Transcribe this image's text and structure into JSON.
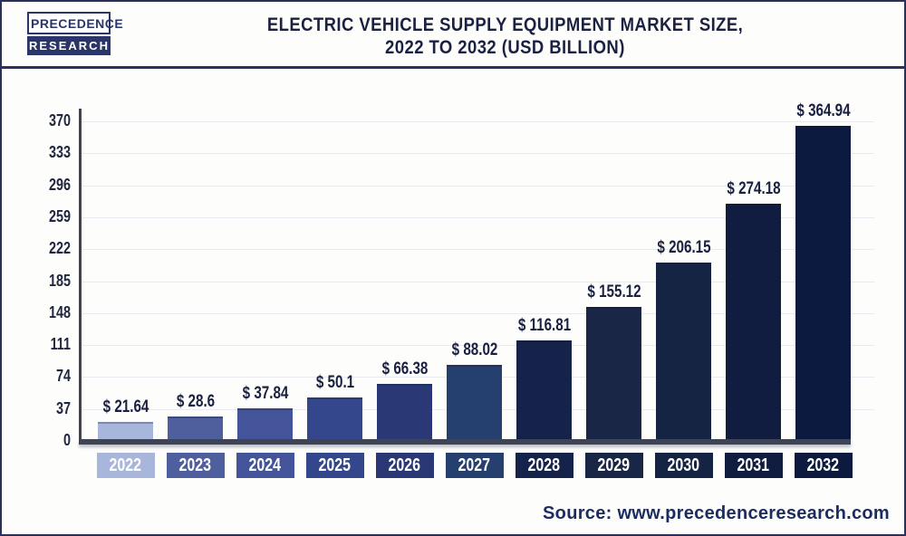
{
  "header": {
    "logo": {
      "line1": "PRECEDENCE",
      "line2": "RESEARCH"
    },
    "title_line1": "ELECTRIC VEHICLE SUPPLY EQUIPMENT MARKET SIZE,",
    "title_line2": "2022 TO 2032 (USD BILLION)"
  },
  "chart_data": {
    "type": "bar",
    "title": "Electric Vehicle Supply Equipment Market Size, 2022 to 2032 (USD Billion)",
    "categories": [
      "2022",
      "2023",
      "2024",
      "2025",
      "2026",
      "2027",
      "2028",
      "2029",
      "2030",
      "2031",
      "2032"
    ],
    "values": [
      21.64,
      28.6,
      37.84,
      50.1,
      66.38,
      88.02,
      116.81,
      155.12,
      206.15,
      274.18,
      364.94
    ],
    "value_labels": [
      "$ 21.64",
      "$ 28.6",
      "$ 37.84",
      "$ 50.1",
      "$ 66.38",
      "$ 88.02",
      "$ 116.81",
      "$ 155.12",
      "$ 206.15",
      "$ 274.18",
      "$ 364.94"
    ],
    "unit": "USD Billion",
    "xlabel": "",
    "ylabel": "",
    "ylim": [
      0,
      370
    ],
    "yticks": [
      0,
      37,
      74,
      111,
      148,
      185,
      222,
      259,
      296,
      333,
      370
    ],
    "grid": true,
    "legend": false,
    "bar_colors": [
      "#a9b6db",
      "#4f5f9e",
      "#44549a",
      "#35478c",
      "#2a3876",
      "#25406f",
      "#15224a",
      "#192645",
      "#162443",
      "#111d40",
      "#0d1a3f"
    ],
    "category_label_text_color": "#ffffff"
  },
  "footer": {
    "source": "Source: www.precedenceresearch.com"
  },
  "colors": {
    "frame_border": "#2a3158",
    "title_text": "#1b2142",
    "axis": "#3e4454",
    "gridline": "#e9e9f0",
    "value_text": "#1a2040",
    "source_text": "#1b2d5e",
    "logo_navy": "#2a3569"
  }
}
